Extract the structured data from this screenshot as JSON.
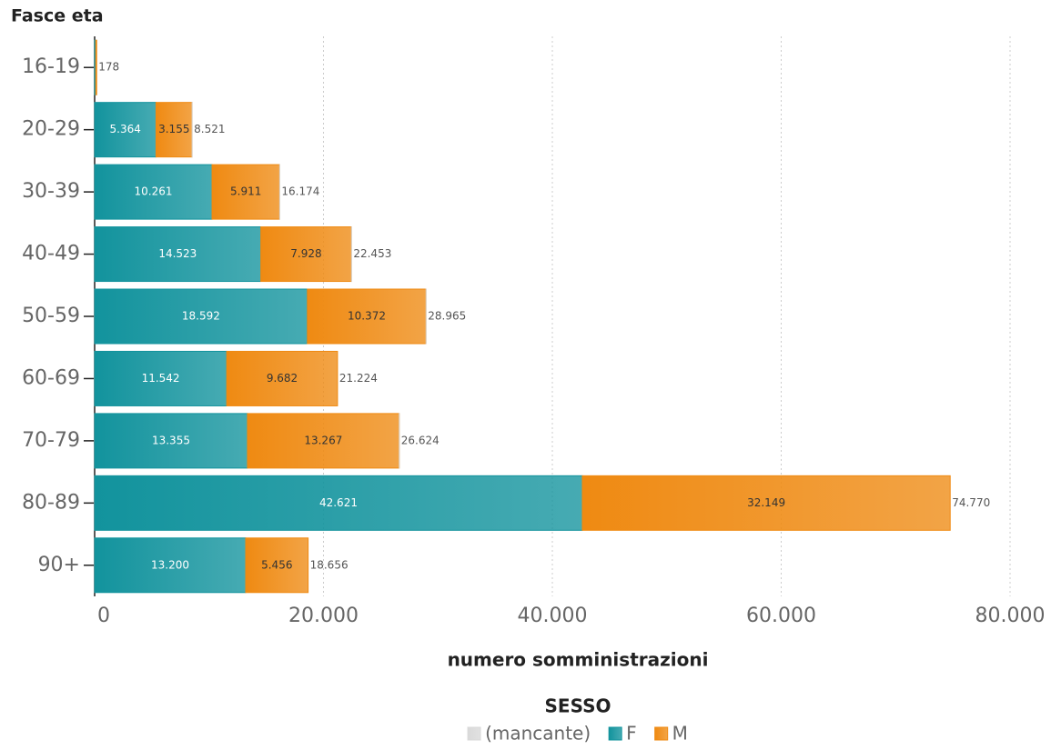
{
  "chart_data": {
    "type": "stacked-barh",
    "y_axis_title": "Fasce eta",
    "x_axis_title": "numero somministrazioni",
    "legend_title": "SESSO",
    "categories": [
      "16-19",
      "20-29",
      "30-39",
      "40-49",
      "50-59",
      "60-69",
      "70-79",
      "80-89",
      "90+"
    ],
    "series": [
      {
        "name": "(mancante)",
        "color": "#d9d9d9",
        "values": [
          0,
          2,
          2,
          2,
          1,
          0,
          2,
          0,
          0
        ]
      },
      {
        "name": "F",
        "color": "#12939d",
        "values": [
          100,
          5364,
          10261,
          14523,
          18592,
          11542,
          13355,
          42621,
          13200
        ],
        "value_labels": [
          null,
          "5.364",
          "10.261",
          "14.523",
          "18.592",
          "11.542",
          "13.355",
          "42.621",
          "13.200"
        ]
      },
      {
        "name": "M",
        "color": "#ef8a12",
        "values": [
          78,
          3155,
          5911,
          7928,
          10372,
          9682,
          13267,
          32149,
          5456
        ],
        "value_labels": [
          null,
          "3.155",
          "5.911",
          "7.928",
          "10.372",
          "9.682",
          "13.267",
          "32.149",
          "5.456"
        ]
      }
    ],
    "totals": {
      "values": [
        178,
        8521,
        16174,
        22453,
        28965,
        21224,
        26624,
        74770,
        18656
      ],
      "value_labels": [
        "178",
        "8.521",
        "16.174",
        "22.453",
        "28.965",
        "21.224",
        "26.624",
        "74.770",
        "18.656"
      ]
    },
    "xlim": [
      0,
      80000
    ],
    "xticks": [
      0,
      {
        "value": 20000,
        "label": "20.000"
      },
      {
        "value": 40000,
        "label": "40.000"
      },
      {
        "value": 60000,
        "label": "60.000"
      },
      {
        "value": 80000,
        "label": "80.000"
      }
    ],
    "grid": true
  }
}
